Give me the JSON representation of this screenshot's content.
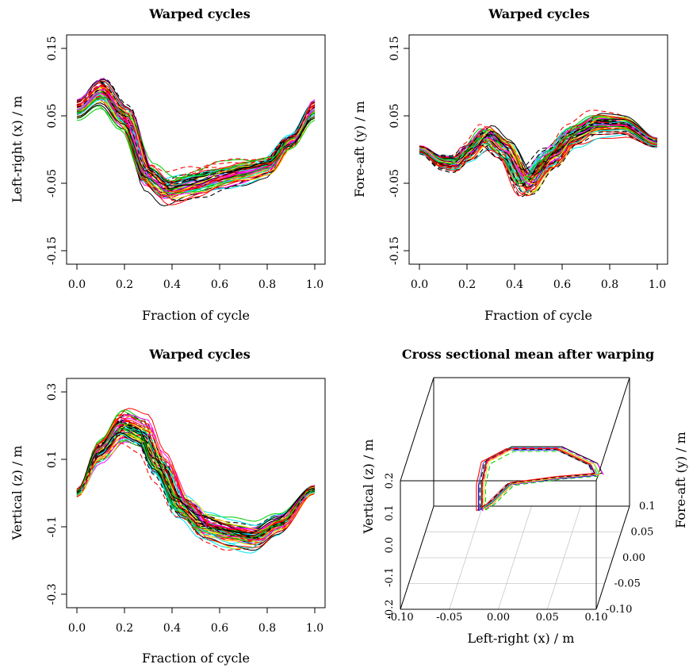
{
  "chart_data": [
    {
      "type": "line",
      "title": "Warped cycles",
      "xlabel": "Fraction of cycle",
      "ylabel": "Left-right (x) / m",
      "xlim": [
        0,
        1
      ],
      "ylim": [
        -0.17,
        0.17
      ],
      "xticks": [
        "0.0",
        "0.2",
        "0.4",
        "0.6",
        "0.8",
        "1.0"
      ],
      "yticks": [
        "-0.15",
        "-0.05",
        "0.05",
        "0.15"
      ],
      "grid": false,
      "series_count": 60,
      "line_styles": [
        "solid",
        "dashed"
      ],
      "mean_curve": {
        "x": [
          0.0,
          0.1,
          0.2,
          0.3,
          0.38,
          0.5,
          0.6,
          0.7,
          0.8,
          0.9,
          1.0
        ],
        "y": [
          0.058,
          0.083,
          0.045,
          -0.038,
          -0.058,
          -0.048,
          -0.038,
          -0.032,
          -0.024,
          0.012,
          0.058
        ]
      }
    },
    {
      "type": "line",
      "title": "Warped cycles",
      "xlabel": "Fraction of cycle",
      "ylabel": "Fore-aft (y) / m",
      "xlim": [
        0,
        1
      ],
      "ylim": [
        -0.17,
        0.17
      ],
      "xticks": [
        "0.0",
        "0.2",
        "0.4",
        "0.6",
        "0.8",
        "1.0"
      ],
      "yticks": [
        "-0.15",
        "-0.05",
        "0.05",
        "0.15"
      ],
      "grid": false,
      "series_count": 60,
      "line_styles": [
        "solid",
        "dashed"
      ],
      "mean_curve": {
        "x": [
          0.0,
          0.1,
          0.15,
          0.2,
          0.28,
          0.35,
          0.45,
          0.55,
          0.65,
          0.75,
          0.85,
          1.0
        ],
        "y": [
          0.0,
          -0.018,
          -0.02,
          -0.005,
          0.018,
          0.0,
          -0.048,
          -0.012,
          0.02,
          0.035,
          0.035,
          0.01
        ]
      }
    },
    {
      "type": "line",
      "title": "Warped cycles",
      "xlabel": "Fraction of cycle",
      "ylabel": "Vertical (z) / m",
      "xlim": [
        0,
        1
      ],
      "ylim": [
        -0.34,
        0.34
      ],
      "xticks": [
        "0.0",
        "0.2",
        "0.4",
        "0.6",
        "0.8",
        "1.0"
      ],
      "yticks": [
        "-0.3",
        "-0.1",
        "0.1",
        "0.3"
      ],
      "grid": false,
      "series_count": 60,
      "line_styles": [
        "solid",
        "dashed"
      ],
      "mean_curve": {
        "x": [
          0.0,
          0.1,
          0.2,
          0.28,
          0.35,
          0.45,
          0.55,
          0.65,
          0.75,
          0.85,
          1.0
        ],
        "y": [
          0.0,
          0.12,
          0.19,
          0.17,
          0.08,
          -0.04,
          -0.1,
          -0.12,
          -0.13,
          -0.09,
          0.01
        ]
      }
    },
    {
      "type": "scatter",
      "title": "Cross sectional mean after warping",
      "xlabel": "Left-right (x) / m",
      "ylabel": "Vertical (z) / m",
      "zlabel": "Fore-aft (y) / m",
      "xticks": [
        "-0.10",
        "-0.05",
        "0.00",
        "0.05",
        "0.10"
      ],
      "yticks": [
        "-0.2",
        "-0.1",
        "0.0",
        "0.1",
        "0.2"
      ],
      "zticks": [
        "-0.10",
        "-0.05",
        "0.00",
        "0.05",
        "0.1"
      ],
      "grid": true,
      "series_count": 10,
      "projection": "3d-box",
      "mean_loop": {
        "x": [
          -0.03,
          -0.03,
          -0.025,
          0.0,
          0.05,
          0.085,
          0.09,
          0.05,
          0.0,
          -0.02,
          -0.03
        ],
        "z": [
          0.0,
          0.08,
          0.15,
          0.19,
          0.19,
          0.14,
          0.11,
          0.1,
          0.08,
          0.02,
          0.0
        ]
      }
    }
  ],
  "colors": {
    "axis": "#000000",
    "grid3d": "#c8c8c8",
    "palette": [
      "#000000",
      "#ff0000",
      "#00cd00",
      "#0000ff",
      "#00e5ee",
      "#ff00ff",
      "#ffd700",
      "#bebebe"
    ]
  }
}
